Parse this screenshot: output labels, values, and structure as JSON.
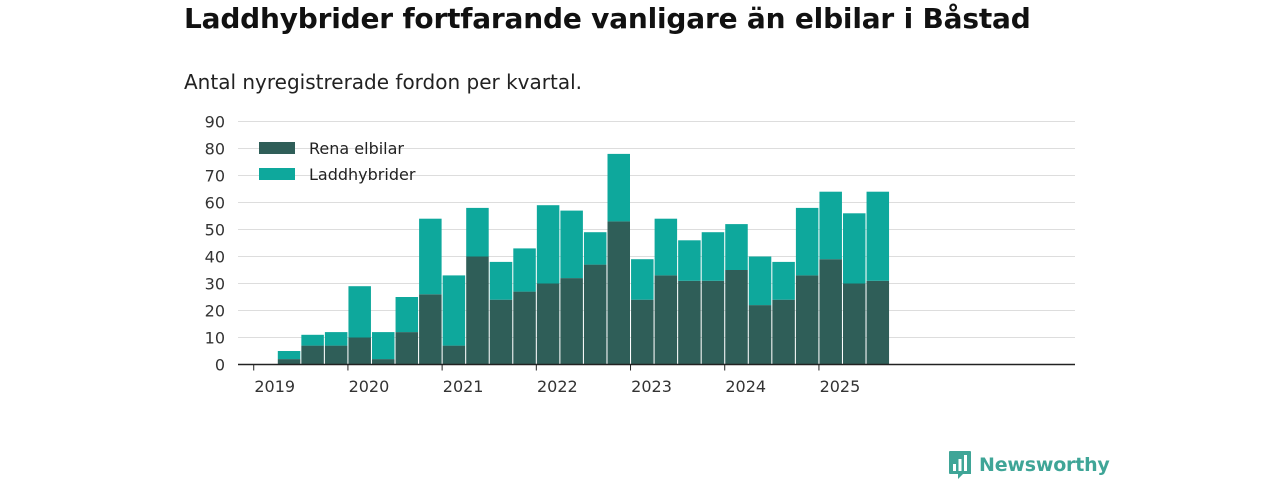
{
  "header": {
    "title": "Laddhybrider fortfarande vanligare än elbilar i Båstad",
    "subtitle": "Antal nyregistrerade fordon per kvartal."
  },
  "branding": {
    "logo_text": "Newsworthy",
    "logo_icon": "bar-chart-badge-icon",
    "color": "#3fa597"
  },
  "chart_data": {
    "type": "bar",
    "stacked": true,
    "title": "Laddhybrider fortfarande vanligare än elbilar i Båstad",
    "subtitle": "Antal nyregistrerade fordon per kvartal.",
    "xlabel": "",
    "ylabel": "",
    "ylim": [
      0,
      90
    ],
    "yticks": [
      0,
      10,
      20,
      30,
      40,
      50,
      60,
      70,
      80,
      90
    ],
    "xtick_labels": [
      "2019",
      "2020",
      "2021",
      "2022",
      "2023",
      "2024",
      "2025"
    ],
    "grid": true,
    "legend_position": "top-left",
    "categories": [
      "2019 Q1",
      "2019 Q2",
      "2019 Q3",
      "2019 Q4",
      "2020 Q1",
      "2020 Q2",
      "2020 Q3",
      "2020 Q4",
      "2021 Q1",
      "2021 Q2",
      "2021 Q3",
      "2021 Q4",
      "2022 Q1",
      "2022 Q2",
      "2022 Q3",
      "2022 Q4",
      "2023 Q1",
      "2023 Q2",
      "2023 Q3",
      "2023 Q4",
      "2024 Q1",
      "2024 Q2",
      "2024 Q3",
      "2024 Q4",
      "2025 Q1",
      "2025 Q2",
      "2025 Q3"
    ],
    "series": [
      {
        "name": "Rena elbilar",
        "color": "#2f5e58",
        "values": [
          0,
          2,
          7,
          7,
          10,
          2,
          12,
          26,
          7,
          40,
          24,
          27,
          30,
          32,
          37,
          53,
          24,
          33,
          31,
          31,
          35,
          22,
          24,
          33,
          39,
          30,
          31
        ]
      },
      {
        "name": "Laddhybrider",
        "color": "#0ea89c",
        "values": [
          0,
          3,
          4,
          5,
          19,
          10,
          13,
          28,
          26,
          18,
          14,
          16,
          29,
          25,
          12,
          25,
          15,
          21,
          15,
          18,
          17,
          18,
          14,
          25,
          25,
          26,
          33
        ]
      }
    ]
  }
}
